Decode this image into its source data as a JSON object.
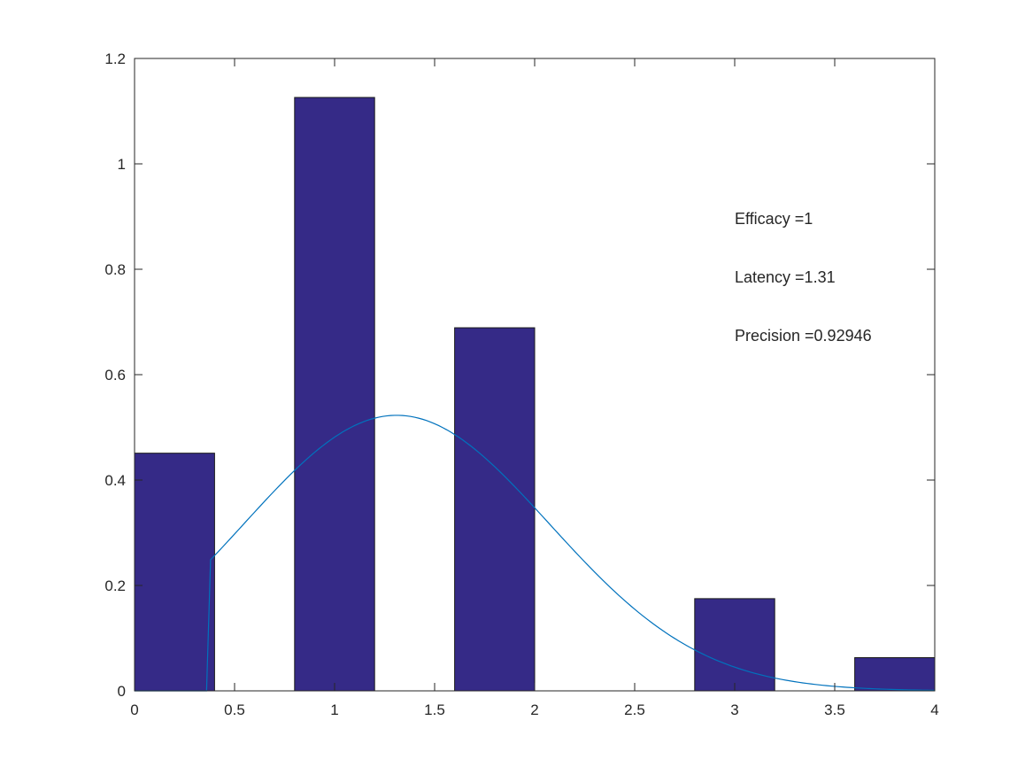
{
  "chart_data": {
    "type": "bar",
    "title": "",
    "xlabel": "",
    "ylabel": "",
    "xlim": [
      0,
      4
    ],
    "ylim": [
      0,
      1.2
    ],
    "grid": false,
    "box": true,
    "bars": [
      {
        "x_start": 0.0,
        "x_end": 0.4,
        "value": 0.451
      },
      {
        "x_start": 0.4,
        "x_end": 0.8,
        "value": 0.0
      },
      {
        "x_start": 0.8,
        "x_end": 1.2,
        "value": 1.126
      },
      {
        "x_start": 1.2,
        "x_end": 1.6,
        "value": 0.0
      },
      {
        "x_start": 1.6,
        "x_end": 2.0,
        "value": 0.689
      },
      {
        "x_start": 2.0,
        "x_end": 2.4,
        "value": 0.0
      },
      {
        "x_start": 2.4,
        "x_end": 2.8,
        "value": 0.0
      },
      {
        "x_start": 2.8,
        "x_end": 3.2,
        "value": 0.175
      },
      {
        "x_start": 3.2,
        "x_end": 3.6,
        "value": 0.0
      },
      {
        "x_start": 3.6,
        "x_end": 4.0,
        "value": 0.063
      }
    ],
    "curve": {
      "type": "line",
      "mean": 1.31,
      "sd": 0.763,
      "zero_below": 0.37,
      "x_range": [
        0,
        4
      ]
    },
    "xticks": [
      "0",
      "0.5",
      "1",
      "1.5",
      "2",
      "2.5",
      "3",
      "3.5",
      "4"
    ],
    "yticks": [
      "0",
      "0.2",
      "0.4",
      "0.6",
      "0.8",
      "1",
      "1.2"
    ],
    "annotations": [
      "Efficacy =1",
      "Latency =1.31",
      "Precision =0.92946"
    ],
    "annotation_position": "top-right",
    "colors": {
      "bar_fill": "#352a87",
      "bar_edge": "#1a1a1a",
      "curve": "#0072bd",
      "axis": "#262626",
      "background": "#ffffff"
    }
  }
}
